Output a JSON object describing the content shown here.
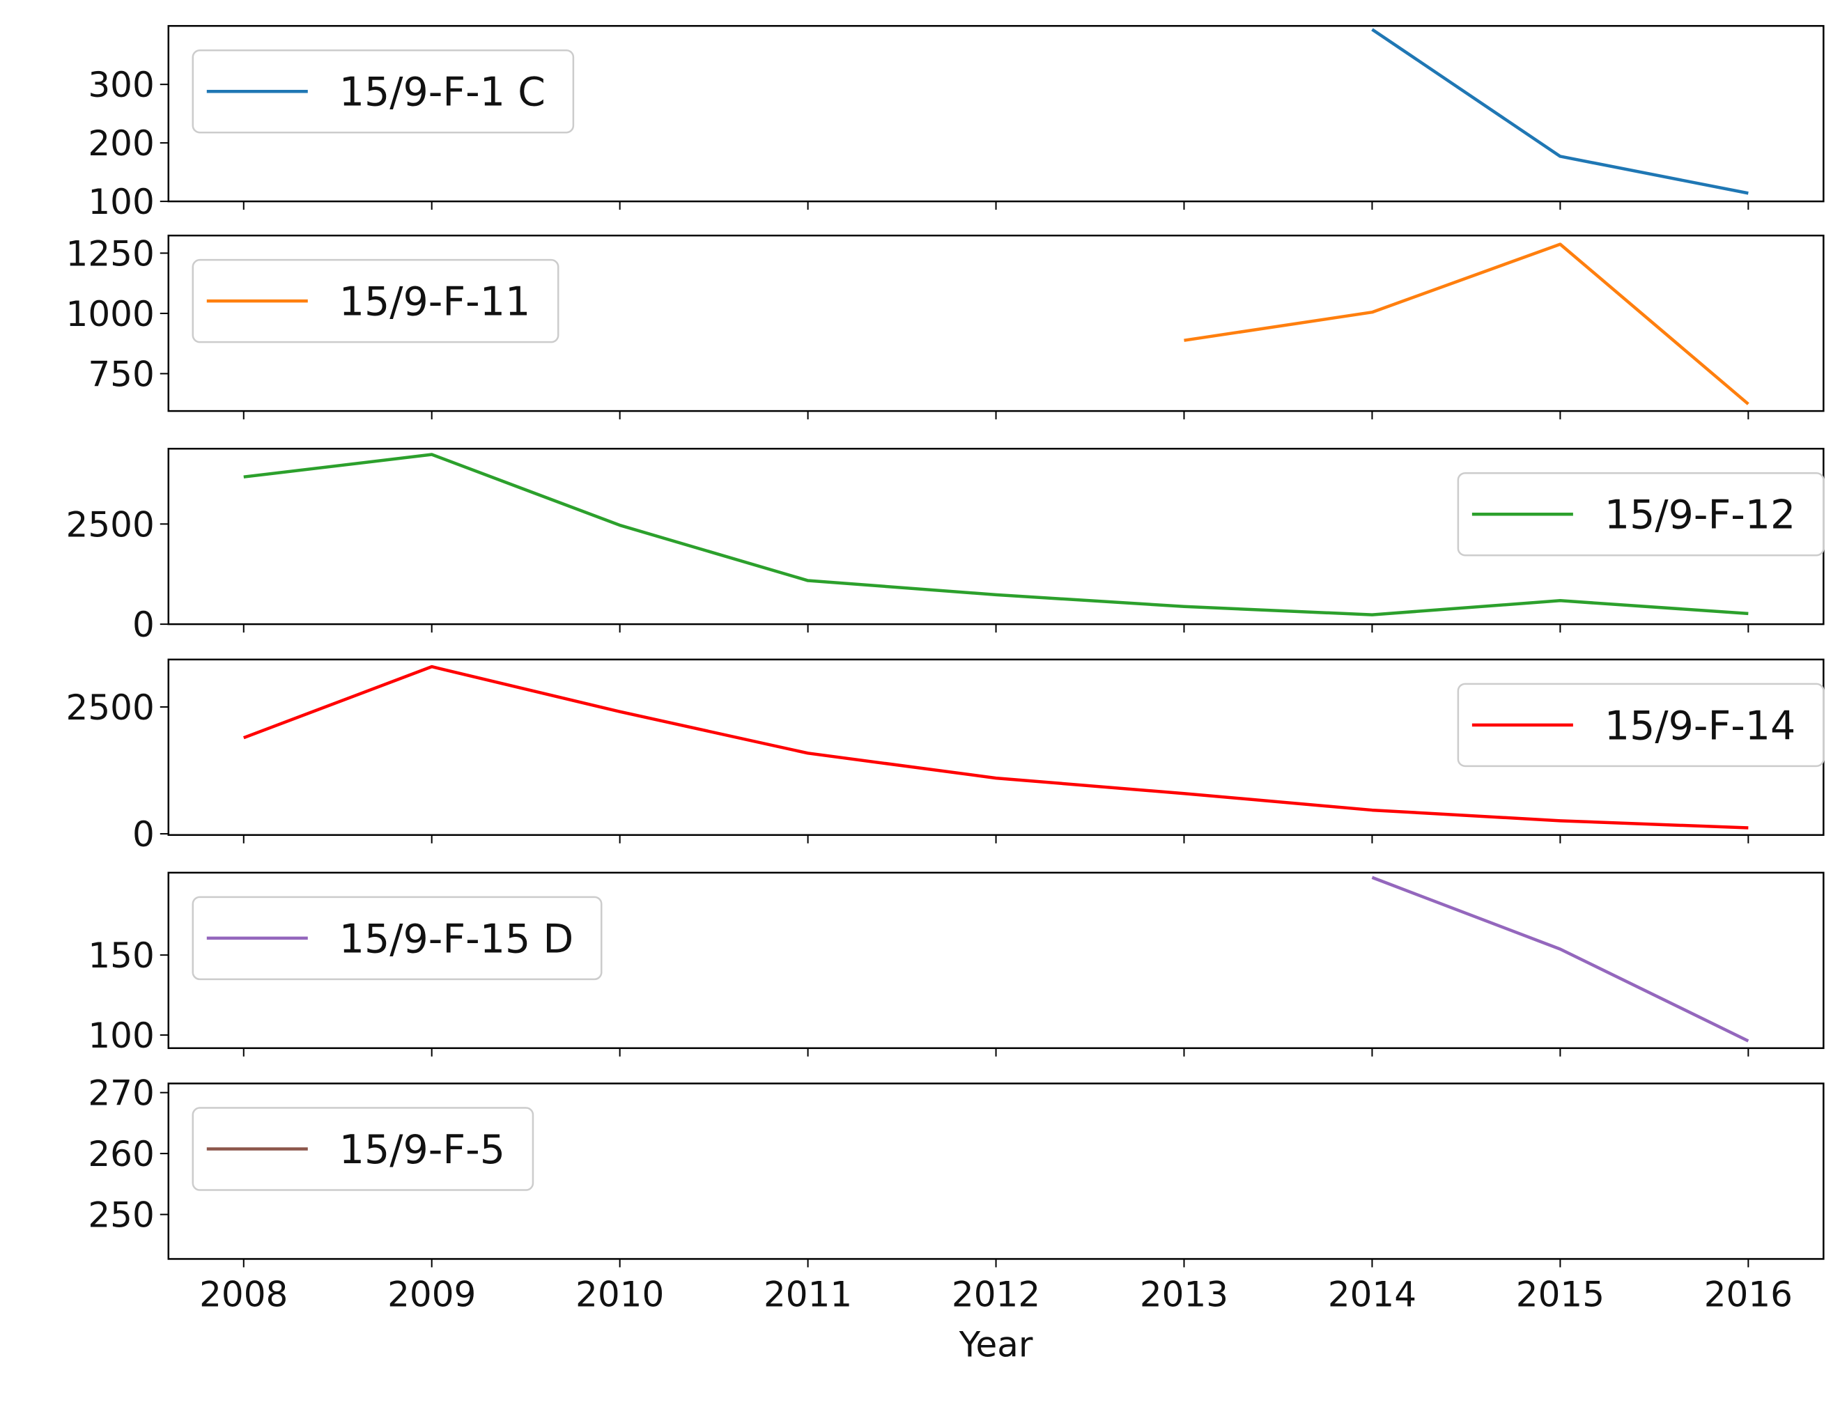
{
  "chart_data": [
    {
      "type": "line",
      "x": [
        2008,
        2009,
        2010,
        2011,
        2012,
        2013,
        2014,
        2015,
        2016
      ],
      "xlim": [
        2007.6,
        2016.4
      ],
      "xticks": [
        2008,
        2009,
        2010,
        2011,
        2012,
        2013,
        2014,
        2015,
        2016
      ],
      "series": [
        {
          "name": "15/9-F-1 C",
          "color": "#1f77b4",
          "values": [
            null,
            null,
            null,
            null,
            null,
            null,
            394,
            177,
            114
          ]
        }
      ],
      "ylim": [
        100,
        400
      ],
      "yticks": [
        100,
        200,
        300
      ],
      "legend": "upper left"
    },
    {
      "type": "line",
      "x": [
        2008,
        2009,
        2010,
        2011,
        2012,
        2013,
        2014,
        2015,
        2016
      ],
      "xlim": [
        2007.6,
        2016.4
      ],
      "xticks": [
        2008,
        2009,
        2010,
        2011,
        2012,
        2013,
        2014,
        2015,
        2016
      ],
      "series": [
        {
          "name": "15/9-F-11",
          "color": "#ff7f0e",
          "values": [
            null,
            null,
            null,
            null,
            null,
            888,
            1005,
            1287,
            624
          ]
        }
      ],
      "ylim": [
        595,
        1323
      ],
      "yticks": [
        750,
        1000,
        1250
      ],
      "legend": "upper left"
    },
    {
      "type": "line",
      "x": [
        2008,
        2009,
        2010,
        2011,
        2012,
        2013,
        2014,
        2015,
        2016
      ],
      "xlim": [
        2007.6,
        2016.4
      ],
      "xticks": [
        2008,
        2009,
        2010,
        2011,
        2012,
        2013,
        2014,
        2015,
        2016
      ],
      "series": [
        {
          "name": "15/9-F-12",
          "color": "#2ca02c",
          "values": [
            3676,
            4235,
            2470,
            1088,
            735,
            441,
            235,
            588,
            265
          ]
        }
      ],
      "ylim": [
        0,
        4380
      ],
      "yticks": [
        0,
        2500
      ],
      "legend": "upper right"
    },
    {
      "type": "line",
      "x": [
        2008,
        2009,
        2010,
        2011,
        2012,
        2013,
        2014,
        2015,
        2016
      ],
      "xlim": [
        2007.6,
        2016.4
      ],
      "xticks": [
        2008,
        2009,
        2010,
        2011,
        2012,
        2013,
        2014,
        2015,
        2016
      ],
      "series": [
        {
          "name": "15/9-F-14",
          "color": "#ff0000",
          "values": [
            1893,
            3294,
            2407,
            1589,
            1098,
            794,
            467,
            257,
            117
          ]
        }
      ],
      "ylim": [
        -23,
        3435
      ],
      "yticks": [
        0,
        2500
      ],
      "legend": "upper right"
    },
    {
      "type": "line",
      "x": [
        2008,
        2009,
        2010,
        2011,
        2012,
        2013,
        2014,
        2015,
        2016
      ],
      "xlim": [
        2007.6,
        2016.4
      ],
      "xticks": [
        2008,
        2009,
        2010,
        2011,
        2012,
        2013,
        2014,
        2015,
        2016
      ],
      "series": [
        {
          "name": "15/9-F-15 D",
          "color": "#9467bd",
          "values": [
            null,
            null,
            null,
            null,
            null,
            null,
            198.5,
            153.7,
            96.3
          ]
        }
      ],
      "ylim": [
        91.8,
        201.5
      ],
      "yticks": [
        100,
        150
      ],
      "legend": "upper left"
    },
    {
      "type": "line",
      "x": [
        2008,
        2009,
        2010,
        2011,
        2012,
        2013,
        2014,
        2015,
        2016
      ],
      "xlim": [
        2007.6,
        2016.4
      ],
      "xticks": [
        2008,
        2009,
        2010,
        2011,
        2012,
        2013,
        2014,
        2015,
        2016
      ],
      "series": [
        {
          "name": "15/9-F-5",
          "color": "#8c564b",
          "values": [
            null,
            null,
            null,
            null,
            null,
            null,
            null,
            null,
            null
          ]
        }
      ],
      "ylim": [
        242.7,
        271.5
      ],
      "yticks": [
        250,
        260,
        270
      ],
      "legend": "upper left",
      "xlabel": "Year"
    }
  ]
}
